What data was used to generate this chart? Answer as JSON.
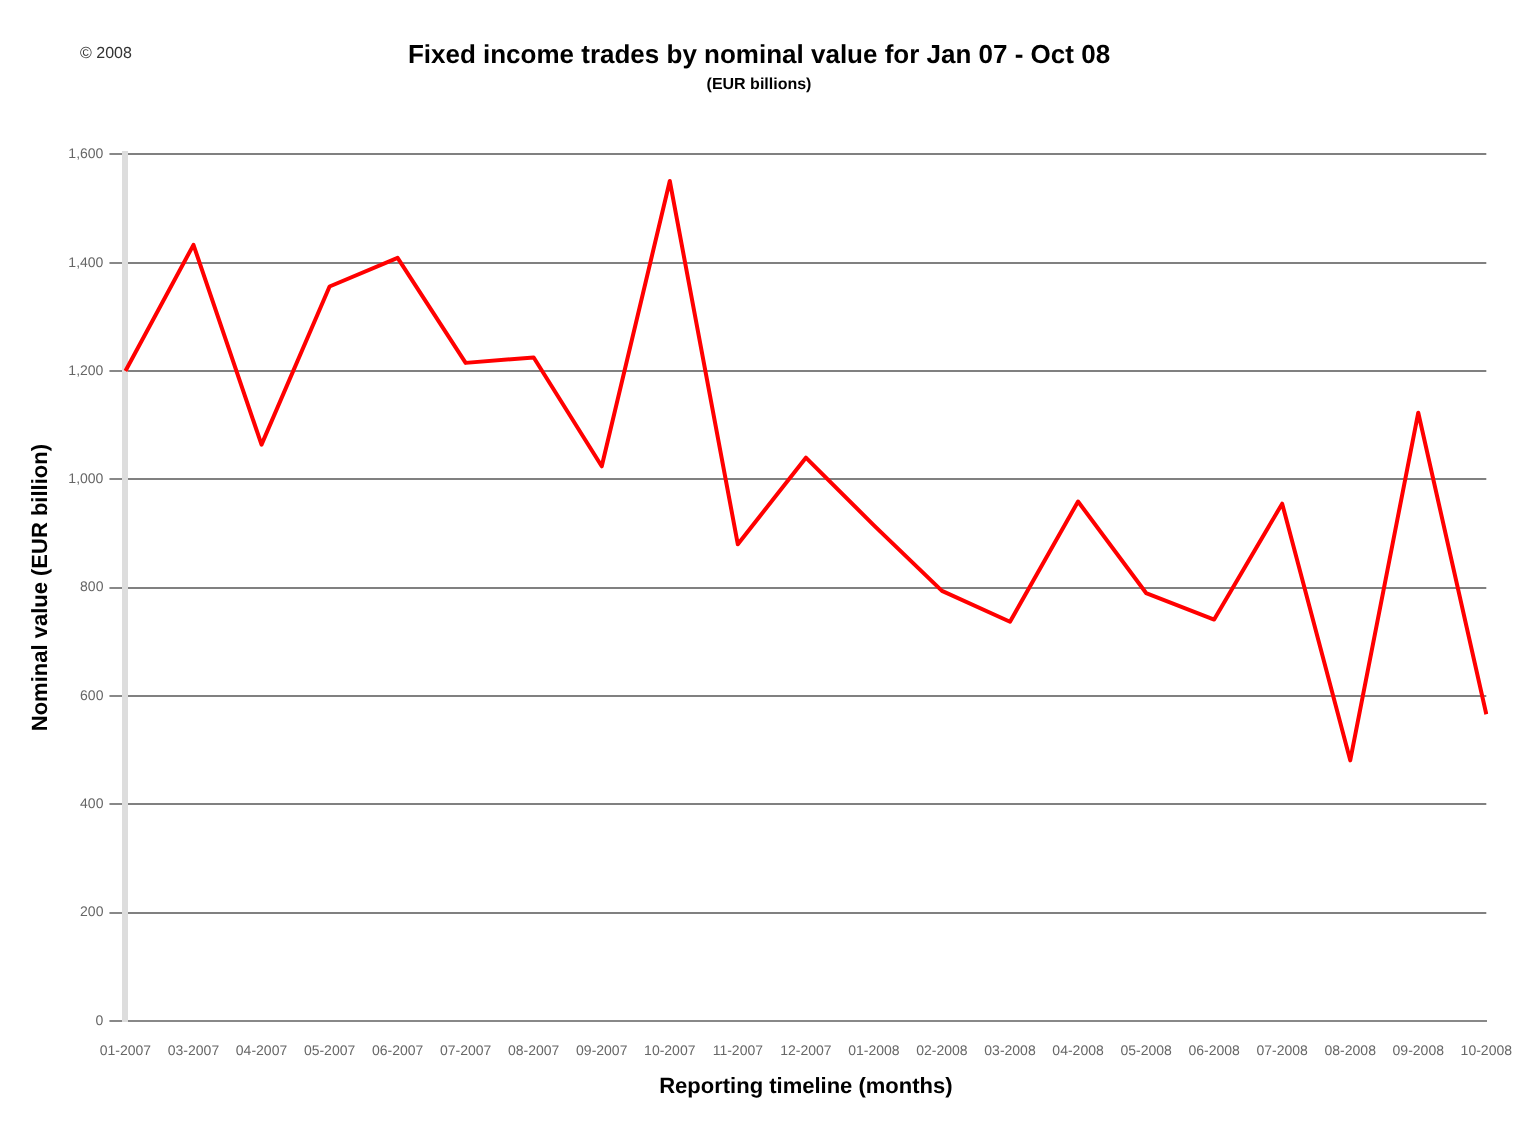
{
  "chart_data": {
    "type": "line",
    "title": "Fixed income trades by nominal value for Jan 07 - Oct 08",
    "subtitle": "(EUR billions)",
    "xlabel": "Reporting timeline (months)",
    "ylabel": "Nominal value (EUR billion)",
    "annotations": [
      "© 2008"
    ],
    "categories": [
      "01-2007",
      "03-2007",
      "04-2007",
      "05-2007",
      "06-2007",
      "07-2007",
      "08-2007",
      "09-2007",
      "10-2007",
      "11-2007",
      "12-2007",
      "01-2008",
      "02-2008",
      "03-2008",
      "04-2008",
      "05-2008",
      "06-2008",
      "07-2008",
      "08-2008",
      "09-2008",
      "10-2008"
    ],
    "series": [
      {
        "color": "#ff0000",
        "values": [
          1200,
          1433,
          1064,
          1356,
          1409,
          1215,
          1225,
          1024,
          1551,
          880,
          1040,
          915,
          794,
          737,
          959,
          790,
          741,
          955,
          481,
          1123,
          566
        ]
      }
    ],
    "ylim": [
      0,
      1600
    ],
    "yticks": [
      0,
      200,
      400,
      600,
      800,
      {
        "value": 1000,
        "label": "1,000"
      },
      {
        "value": 1200,
        "label": "1,200"
      },
      {
        "value": 1400,
        "label": "1,400"
      },
      {
        "value": 1600,
        "label": "1,600"
      }
    ],
    "grid": "y",
    "legend": false,
    "marker": "none",
    "line_style": "solid"
  }
}
